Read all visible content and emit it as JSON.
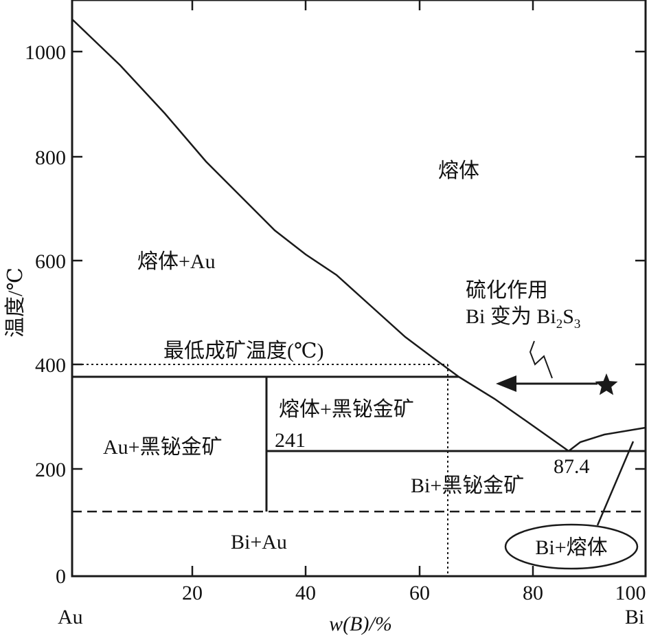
{
  "y_axis": {
    "label": "温度/℃",
    "ticks": [
      "0",
      "200",
      "400",
      "600",
      "800",
      "1000"
    ]
  },
  "x_axis": {
    "label": "w(B)/%",
    "ticks": [
      "20",
      "40",
      "60",
      "80",
      "100"
    ],
    "left_end_label": "Au",
    "right_end_label": "Bi"
  },
  "regions": {
    "melt": "熔体",
    "melt_au": "熔体+Au",
    "melt_maldonite": "熔体+黑铋金矿",
    "au_maldonite": "Au+黑铋金矿",
    "bi_maldonite": "Bi+黑铋金矿",
    "bi_au": "Bi+Au",
    "bi_melt": "Bi+熔体"
  },
  "annotations": {
    "min_temp": "最低成矿温度(℃)",
    "t241": "241",
    "t874": "87.4",
    "sulfidation_line1": "硫化作用",
    "sulfidation_line2_prefix": "Bi 变为 Bi",
    "sub2": "2",
    "s_letter": "S",
    "sub3": "3"
  },
  "colors": {
    "ink": "#1a1a1a"
  }
}
